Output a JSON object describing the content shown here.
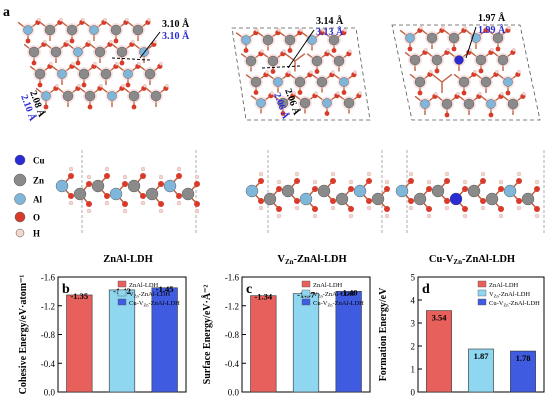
{
  "panel_a": {
    "letter": "a",
    "structures": [
      {
        "name": "ZnAl-LDH",
        "d1_black": "3.10 Å",
        "d1_blue": "3.10 Å",
        "d2_black": "2.08 Å",
        "d2_blue": "2.10 Å"
      },
      {
        "name_main": "V",
        "name_sub": "Zn",
        "name_rest": "-ZnAl-LDH",
        "d1_black": "3.14 Å",
        "d1_blue": "3.13 Å",
        "d2_black": "2.06 Å",
        "d2_blue": "2.06 Å"
      },
      {
        "name_pre": "Cu-V",
        "name_sub": "Zn",
        "name_rest": "-ZnAl-LDH",
        "d1_black": "1.97 Å",
        "d1_blue": "1.99 Å"
      }
    ],
    "legend": [
      {
        "label": "Cu",
        "color": "#2b2bd6"
      },
      {
        "label": "Zn",
        "color": "#8a8a8a"
      },
      {
        "label": "Al",
        "color": "#7fb6d9"
      },
      {
        "label": "O",
        "color": "#d93b2b"
      },
      {
        "label": "H",
        "color": "#f3d6cc"
      }
    ]
  },
  "chart_data": [
    {
      "type": "bar",
      "panel": "b",
      "ylabel": "Cohesive  Energy/eV·atom⁻¹",
      "ylim": [
        -1.6,
        0
      ],
      "yticks": [
        "-1.6",
        "-1.2",
        "-0.8",
        "-0.4",
        "0.0"
      ],
      "categories": [
        "ZnAl-LDH",
        "VZn-ZnAl-LDH",
        "Cu-VZn-ZnAl-LDH"
      ],
      "values": [
        -1.35,
        -1.42,
        -1.45
      ],
      "value_labels": [
        "-1.35",
        "-1.42",
        "-1.45"
      ],
      "colors": [
        "#e8605c",
        "#8fd6f0",
        "#3f5be0"
      ]
    },
    {
      "type": "bar",
      "panel": "c",
      "ylabel": "Surface Energy/eV·Å⁻²",
      "ylim": [
        -1.6,
        0
      ],
      "yticks": [
        "-1.6",
        "-1.2",
        "-0.8",
        "-0.4",
        "0.0"
      ],
      "categories": [
        "ZnAl-LDH",
        "VZn-ZnAl-LDH",
        "Cu-VZn-ZnAl-LDH"
      ],
      "values": [
        -1.34,
        -1.37,
        -1.4
      ],
      "value_labels": [
        "-1.34",
        "-1.37",
        "-1.40"
      ],
      "colors": [
        "#e8605c",
        "#8fd6f0",
        "#3f5be0"
      ]
    },
    {
      "type": "bar",
      "panel": "d",
      "ylabel": "Formation Energy/eV",
      "ylim": [
        0,
        5
      ],
      "yticks": [
        "0",
        "1",
        "2",
        "3",
        "4",
        "5"
      ],
      "categories": [
        "ZnAl-LDH",
        "VZn-ZnAl-LDH",
        "Cu-VZn-ZnAl-LDH"
      ],
      "values": [
        3.54,
        1.87,
        1.78
      ],
      "value_labels": [
        "3.54",
        "1.87",
        "1.78"
      ],
      "colors": [
        "#e8605c",
        "#8fd6f0",
        "#3f5be0"
      ]
    }
  ]
}
